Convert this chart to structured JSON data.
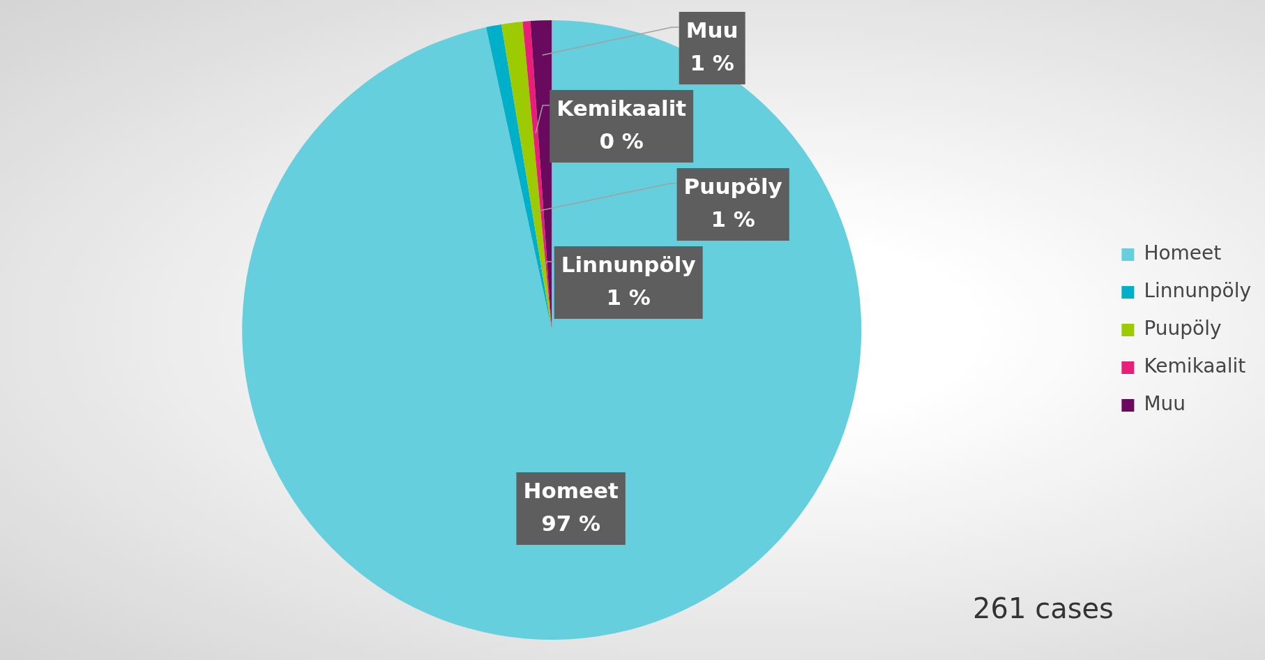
{
  "chart_data": {
    "type": "pie",
    "categories": [
      "Homeet",
      "Linnunpöly",
      "Puupöly",
      "Kemikaalit",
      "Muu"
    ],
    "values": [
      96.6,
      0.8,
      1.1,
      0.4,
      1.1
    ],
    "value_labels": [
      "97 %",
      "1 %",
      "1 %",
      "0 %",
      "1 %"
    ],
    "colors": [
      "#66cfde",
      "#00b0c8",
      "#9bcb00",
      "#e91e78",
      "#6a0a5e"
    ],
    "legend": "right",
    "annotations": [
      "261 cases"
    ]
  }
}
